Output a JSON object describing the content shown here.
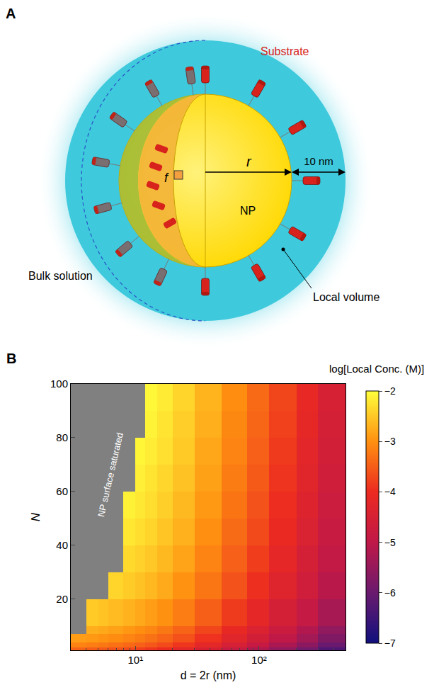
{
  "panel_a": {
    "label": "A",
    "texts": {
      "substrate": "Substrate",
      "radius": "r",
      "shell": "10 nm",
      "fraction": "f",
      "particle": "NP",
      "bulk": "Bulk solution",
      "local": "Local volume"
    }
  },
  "chart_data": {
    "type": "heatmap",
    "panel": "B",
    "x_title": "d = 2r (nm)",
    "y_title": "N",
    "annotation": "NP surface saturated",
    "log": "x",
    "xlim": [
      3,
      500
    ],
    "xticks": [
      {
        "value": 10,
        "label": "10¹"
      },
      {
        "value": 100,
        "label": "10²"
      }
    ],
    "ylim": [
      1,
      100
    ],
    "yticks": [
      20,
      40,
      60,
      80,
      100
    ],
    "x_edges": [
      3,
      4,
      5,
      6,
      8,
      10,
      12,
      15,
      20,
      30,
      50,
      80,
      120,
      200,
      300,
      500
    ],
    "y_edges": [
      1,
      2,
      4,
      7,
      10,
      20,
      30,
      40,
      50,
      60,
      70,
      80,
      90,
      100
    ],
    "cells": [
      [
        -3.43,
        -3.49,
        -3.54,
        -3.61,
        -3.69,
        -3.78,
        -3.87,
        -3.99,
        -4.19,
        -4.48,
        -4.83,
        -5.17,
        -5.54,
        -5.91,
        -6.3
      ],
      [
        -3.13,
        -3.19,
        -3.24,
        -3.31,
        -3.39,
        -3.47,
        -3.56,
        -3.69,
        -3.89,
        -4.18,
        -4.53,
        -4.87,
        -5.24,
        -5.61,
        -6.0
      ],
      [
        -2.87,
        -2.92,
        -2.97,
        -3.04,
        -3.13,
        -3.21,
        -3.3,
        -3.43,
        -3.63,
        -3.92,
        -4.27,
        -4.61,
        -4.97,
        -5.35,
        -5.74
      ],
      [
        null,
        -2.73,
        -2.78,
        -2.85,
        -2.94,
        -3.02,
        -3.11,
        -3.24,
        -3.44,
        -3.73,
        -4.08,
        -4.42,
        -4.78,
        -5.16,
        -5.55
      ],
      [
        null,
        -2.49,
        -2.54,
        -2.61,
        -2.69,
        -2.78,
        -2.87,
        -2.99,
        -3.19,
        -3.48,
        -3.83,
        -4.17,
        -4.54,
        -4.91,
        -5.3
      ],
      [
        null,
        null,
        null,
        -2.38,
        -2.47,
        -2.55,
        -2.64,
        -2.77,
        -2.97,
        -3.26,
        -3.61,
        -3.95,
        -4.32,
        -4.69,
        -5.08
      ],
      [
        null,
        null,
        null,
        null,
        -2.33,
        -2.41,
        -2.5,
        -2.63,
        -2.82,
        -3.12,
        -3.47,
        -3.8,
        -4.17,
        -4.55,
        -4.93
      ],
      [
        null,
        null,
        null,
        null,
        -2.22,
        -2.3,
        -2.39,
        -2.52,
        -2.71,
        -3.01,
        -3.36,
        -3.69,
        -4.06,
        -4.44,
        -4.82
      ],
      [
        null,
        null,
        null,
        null,
        -2.13,
        -2.21,
        -2.3,
        -2.43,
        -2.63,
        -2.92,
        -3.27,
        -3.61,
        -3.97,
        -4.35,
        -4.74
      ],
      [
        null,
        null,
        null,
        null,
        null,
        -2.14,
        -2.23,
        -2.36,
        -2.55,
        -2.85,
        -3.2,
        -3.53,
        -3.9,
        -4.28,
        -4.66
      ],
      [
        null,
        null,
        null,
        null,
        null,
        -2.08,
        -2.17,
        -2.29,
        -2.49,
        -2.79,
        -3.13,
        -3.47,
        -3.84,
        -4.22,
        -4.6
      ],
      [
        null,
        null,
        null,
        null,
        null,
        null,
        -2.11,
        -2.24,
        -2.44,
        -2.73,
        -3.08,
        -3.42,
        -3.78,
        -4.16,
        -4.55
      ],
      [
        null,
        null,
        null,
        null,
        null,
        null,
        -2.06,
        -2.19,
        -2.39,
        -2.68,
        -3.03,
        -3.37,
        -3.74,
        -4.11,
        -4.5
      ]
    ],
    "colorbar": {
      "title": "log[Local Conc. (M)]",
      "range": [
        -7,
        -2
      ],
      "ticks": [
        -7,
        -6,
        -5,
        -4,
        -3,
        -2
      ]
    }
  }
}
